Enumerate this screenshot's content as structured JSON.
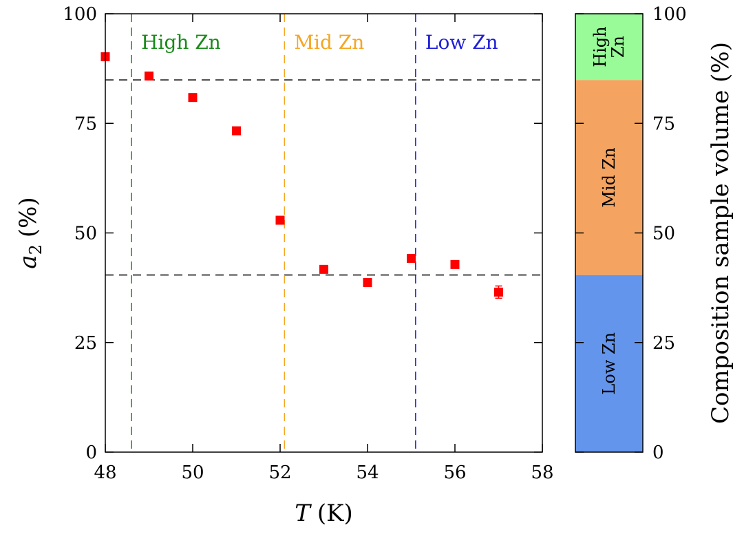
{
  "chart_data": {
    "type": "scatter",
    "xlabel": "T (K)",
    "xlabel_var": "T",
    "xlabel_unit": "(K)",
    "ylabel": "a2 (%)",
    "ylabel_var": "a",
    "ylabel_sub": "2",
    "ylabel_unit": "(%)",
    "xlim": [
      48,
      58
    ],
    "ylim": [
      0,
      100
    ],
    "xticks": [
      "48",
      "50",
      "52",
      "54",
      "56",
      "58"
    ],
    "yticks": [
      "0",
      "25",
      "50",
      "75",
      "100"
    ],
    "grid": false,
    "x": [
      48,
      49,
      50,
      51,
      52,
      53,
      54,
      55,
      56,
      57
    ],
    "y": [
      90.2,
      85.8,
      80.9,
      73.3,
      52.9,
      41.7,
      38.7,
      44.2,
      42.8,
      36.5
    ],
    "yerr": [
      0.8,
      0.8,
      0.8,
      0.8,
      0.8,
      0.8,
      0.8,
      0.8,
      0.8,
      1.4
    ],
    "marker_color": "#ff0000",
    "horizontal_lines": [
      84.9,
      40.4
    ],
    "vertical_lines": [
      {
        "x": 48.6,
        "label": "High Zn",
        "color": "#1a8a1a"
      },
      {
        "x": 52.1,
        "label": "Mid Zn",
        "color": "#f5a623"
      },
      {
        "x": 55.1,
        "label": "Low Zn",
        "color": "#1f1fd6"
      }
    ],
    "composition_bar": {
      "ylabel": "Composition sample volume (%)",
      "yticks": [
        "0",
        "25",
        "50",
        "75",
        "100"
      ],
      "segments": [
        {
          "label_lines": [
            "Low Zn"
          ],
          "start": 0,
          "end": 40.4,
          "color": "#6495ed"
        },
        {
          "label_lines": [
            "Mid Zn"
          ],
          "start": 40.4,
          "end": 84.9,
          "color": "#f4a460"
        },
        {
          "label_lines": [
            "High",
            "Zn"
          ],
          "start": 84.9,
          "end": 100,
          "color": "#98fb98"
        }
      ]
    }
  }
}
